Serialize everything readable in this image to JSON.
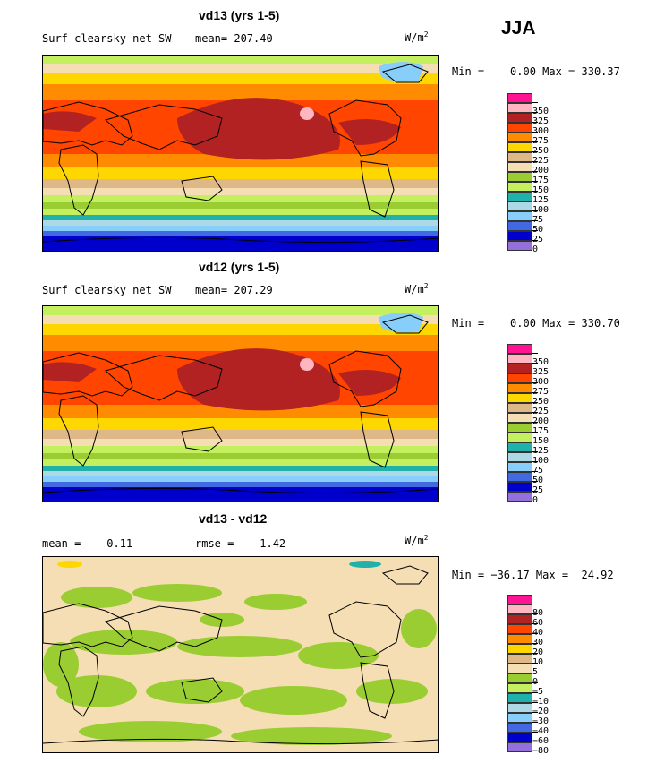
{
  "season": "JJA",
  "panels": [
    {
      "title": "vd13 (yrs 1-5)",
      "subtitle": "Surf clearsky net SW",
      "mean_label": "mean= 207.40",
      "units_base": "W/m",
      "units_exp": "2",
      "minmax": "Min =    0.00 Max = 330.37"
    },
    {
      "title": "vd12 (yrs 1-5)",
      "subtitle": "Surf clearsky net SW",
      "mean_label": "mean= 207.29",
      "units_base": "W/m",
      "units_exp": "2",
      "minmax": "Min =    0.00 Max = 330.70"
    },
    {
      "title": "vd13 - vd12",
      "subtitle": "mean =    0.11",
      "mean_label": "rmse =    1.42",
      "units_base": "W/m",
      "units_exp": "2",
      "minmax": "Min = −36.17 Max =  24.92"
    }
  ],
  "chart_data": [
    {
      "type": "heatmap",
      "title": "vd13 (yrs 1-5)",
      "variable": "Surf clearsky net SW",
      "units": "W/m2",
      "mean": 207.4,
      "min": 0.0,
      "max": 330.37,
      "contour_levels": [
        350,
        325,
        300,
        275,
        250,
        225,
        200,
        175,
        150,
        125,
        100,
        75,
        50,
        25,
        0
      ],
      "colors": [
        "#ff1493",
        "#ffb6c1",
        "#b22222",
        "#ff4500",
        "#ff8c00",
        "#ffd700",
        "#deb887",
        "#f5deb3",
        "#9acd32",
        "#c4f060",
        "#20b2aa",
        "#add8e6",
        "#87cefa",
        "#4169e1",
        "#0000cd",
        "#9370db"
      ]
    },
    {
      "type": "heatmap",
      "title": "vd12 (yrs 1-5)",
      "variable": "Surf clearsky net SW",
      "units": "W/m2",
      "mean": 207.29,
      "min": 0.0,
      "max": 330.7,
      "contour_levels": [
        350,
        325,
        300,
        275,
        250,
        225,
        200,
        175,
        150,
        125,
        100,
        75,
        50,
        25,
        0
      ],
      "colors": [
        "#ff1493",
        "#ffb6c1",
        "#b22222",
        "#ff4500",
        "#ff8c00",
        "#ffd700",
        "#deb887",
        "#f5deb3",
        "#9acd32",
        "#c4f060",
        "#20b2aa",
        "#add8e6",
        "#87cefa",
        "#4169e1",
        "#0000cd",
        "#9370db"
      ]
    },
    {
      "type": "heatmap",
      "title": "vd13 - vd12",
      "units": "W/m2",
      "mean": 0.11,
      "rmse": 1.42,
      "min": -36.17,
      "max": 24.92,
      "contour_levels": [
        "80",
        "60",
        "40",
        "30",
        "20",
        "10",
        "5",
        "0",
        "−5",
        "−10",
        "−20",
        "−30",
        "−40",
        "−60",
        "−80"
      ],
      "colors": [
        "#ff1493",
        "#ffb6c1",
        "#b22222",
        "#ff4500",
        "#ff8c00",
        "#ffd700",
        "#deb887",
        "#f5deb3",
        "#9acd32",
        "#c4f060",
        "#20b2aa",
        "#add8e6",
        "#87cefa",
        "#4169e1",
        "#0000cd",
        "#9370db"
      ]
    }
  ]
}
